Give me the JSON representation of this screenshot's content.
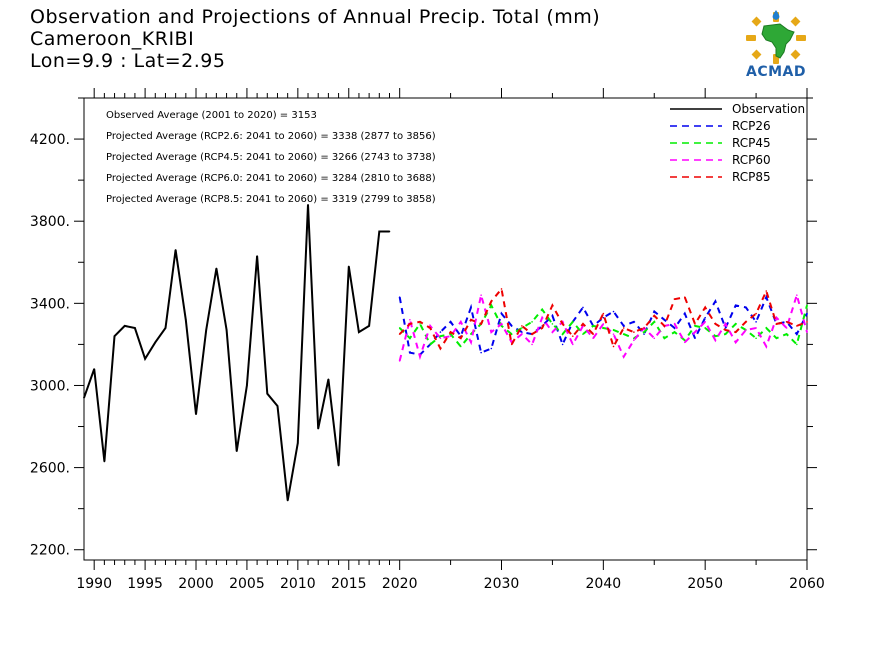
{
  "header": {
    "title": "Observation and Projections of Annual Precip. Total (mm)",
    "location": "Cameroon_KRIBI",
    "coords": "Lon=9.9 : Lat=2.95"
  },
  "logo": {
    "text": "ACMAD",
    "icon": "africa-map-icon"
  },
  "summary": [
    "Observed Average (2001 to 2020) = 3153",
    "Projected Average (RCP2.6: 2041 to 2060) = 3338 (2877 to 3856)",
    "Projected Average (RCP4.5: 2041 to 2060) = 3266 (2743 to 3738)",
    "Projected Average (RCP6.0: 2041 to 2060) = 3284 (2810 to 3688)",
    "Projected Average (RCP8.5: 2041 to 2060) = 3319 (2799 to 3858)"
  ],
  "chart_data": {
    "type": "line",
    "title": "Observation and Projections of Annual Precip. Total (mm)",
    "xlim": [
      1989,
      2060
    ],
    "ylim": [
      2150,
      4400
    ],
    "x_ticks": [
      1990,
      1995,
      2000,
      2005,
      2010,
      2015,
      2020,
      2030,
      2040,
      2050,
      2060
    ],
    "y_ticks": [
      2200,
      2600,
      3000,
      3400,
      3800,
      4200
    ],
    "y_tick_labels": [
      "2200.",
      "2600.",
      "3000.",
      "3400.",
      "3800.",
      "4200."
    ],
    "legend_position": "top-right",
    "colors": {
      "Observation": "#000000",
      "RCP26": "#0000ee",
      "RCP45": "#00ee00",
      "RCP60": "#ff00ff",
      "RCP85": "#ee0000"
    },
    "series": [
      {
        "name": "Observation",
        "style": "solid",
        "x": [
          1989,
          1990,
          1991,
          1992,
          1993,
          1994,
          1995,
          1996,
          1997,
          1998,
          1999,
          2000,
          2001,
          2002,
          2003,
          2004,
          2005,
          2006,
          2007,
          2008,
          2009,
          2010,
          2011,
          2012,
          2013,
          2014,
          2015,
          2016,
          2017,
          2018,
          2019
        ],
        "values": [
          2940,
          3080,
          2630,
          3240,
          3290,
          3280,
          3130,
          3210,
          3280,
          3660,
          3320,
          2860,
          3270,
          3570,
          3270,
          2680,
          3000,
          3630,
          2960,
          2900,
          2440,
          2720,
          3880,
          2790,
          3030,
          2610,
          3580,
          3260,
          3290,
          3750,
          3750
        ]
      },
      {
        "name": "RCP26",
        "style": "dashed",
        "x": [
          2020,
          2021,
          2022,
          2023,
          2024,
          2025,
          2026,
          2027,
          2028,
          2029,
          2030,
          2031,
          2032,
          2033,
          2034,
          2035,
          2036,
          2037,
          2038,
          2039,
          2040,
          2041,
          2042,
          2043,
          2044,
          2045,
          2046,
          2047,
          2048,
          2049,
          2050,
          2051,
          2052,
          2053,
          2054,
          2055,
          2056,
          2057,
          2058,
          2059,
          2060
        ],
        "values": [
          3430,
          3160,
          3150,
          3200,
          3260,
          3310,
          3240,
          3380,
          3160,
          3180,
          3350,
          3290,
          3260,
          3250,
          3290,
          3340,
          3200,
          3310,
          3380,
          3290,
          3330,
          3360,
          3290,
          3310,
          3250,
          3360,
          3320,
          3280,
          3350,
          3230,
          3330,
          3410,
          3280,
          3390,
          3380,
          3310,
          3430,
          3300,
          3310,
          3250,
          3350
        ]
      },
      {
        "name": "RCP45",
        "style": "dashed",
        "x": [
          2020,
          2021,
          2022,
          2023,
          2024,
          2025,
          2026,
          2027,
          2028,
          2029,
          2030,
          2031,
          2032,
          2033,
          2034,
          2035,
          2036,
          2037,
          2038,
          2039,
          2040,
          2041,
          2042,
          2043,
          2044,
          2045,
          2046,
          2047,
          2048,
          2049,
          2050,
          2051,
          2052,
          2053,
          2054,
          2055,
          2056,
          2057,
          2058,
          2059,
          2060
        ],
        "values": [
          3280,
          3230,
          3300,
          3200,
          3240,
          3250,
          3190,
          3250,
          3300,
          3390,
          3290,
          3250,
          3280,
          3310,
          3370,
          3300,
          3250,
          3310,
          3250,
          3290,
          3280,
          3270,
          3250,
          3230,
          3260,
          3310,
          3230,
          3260,
          3220,
          3290,
          3280,
          3240,
          3250,
          3300,
          3270,
          3230,
          3280,
          3230,
          3250,
          3200,
          3390
        ]
      },
      {
        "name": "RCP60",
        "style": "dashed",
        "x": [
          2020,
          2021,
          2022,
          2023,
          2024,
          2025,
          2026,
          2027,
          2028,
          2029,
          2030,
          2031,
          2032,
          2033,
          2034,
          2035,
          2036,
          2037,
          2038,
          2039,
          2040,
          2041,
          2042,
          2043,
          2044,
          2045,
          2046,
          2047,
          2048,
          2049,
          2050,
          2051,
          2052,
          2053,
          2054,
          2055,
          2056,
          2057,
          2058,
          2059,
          2060
        ],
        "values": [
          3120,
          3320,
          3140,
          3290,
          3230,
          3240,
          3310,
          3210,
          3440,
          3260,
          3300,
          3210,
          3250,
          3200,
          3330,
          3260,
          3310,
          3200,
          3290,
          3230,
          3300,
          3250,
          3140,
          3220,
          3280,
          3230,
          3290,
          3300,
          3210,
          3260,
          3310,
          3220,
          3300,
          3210,
          3270,
          3280,
          3190,
          3330,
          3280,
          3440,
          3260
        ]
      },
      {
        "name": "RCP85",
        "style": "dashed",
        "x": [
          2020,
          2021,
          2022,
          2023,
          2024,
          2025,
          2026,
          2027,
          2028,
          2029,
          2030,
          2031,
          2032,
          2033,
          2034,
          2035,
          2036,
          2037,
          2038,
          2039,
          2040,
          2041,
          2042,
          2043,
          2044,
          2045,
          2046,
          2047,
          2048,
          2049,
          2050,
          2051,
          2052,
          2053,
          2054,
          2055,
          2056,
          2057,
          2058,
          2059,
          2060
        ],
        "values": [
          3250,
          3300,
          3310,
          3280,
          3180,
          3260,
          3230,
          3320,
          3300,
          3410,
          3470,
          3200,
          3290,
          3250,
          3280,
          3390,
          3300,
          3240,
          3300,
          3250,
          3350,
          3190,
          3280,
          3260,
          3280,
          3340,
          3290,
          3420,
          3430,
          3300,
          3380,
          3300,
          3270,
          3260,
          3310,
          3350,
          3460,
          3300,
          3310,
          3290,
          3310
        ]
      }
    ]
  }
}
